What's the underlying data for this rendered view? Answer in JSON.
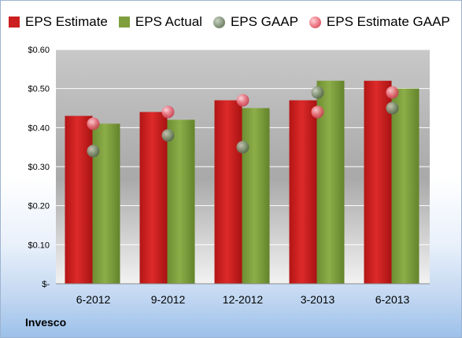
{
  "company": "Invesco",
  "colors": {
    "eps_estimate": "#cc1f1f",
    "eps_actual": "#7f9f3f",
    "eps_gaap": "#7f8f75",
    "eps_estimate_gaap": "#e86a78"
  },
  "chart_data": {
    "type": "bar",
    "categories": [
      "6-2012",
      "9-2012",
      "12-2012",
      "3-2013",
      "6-2013"
    ],
    "series": [
      {
        "name": "EPS Estimate",
        "kind": "bar",
        "values": [
          0.43,
          0.44,
          0.47,
          0.47,
          0.52
        ]
      },
      {
        "name": "EPS Actual",
        "kind": "bar",
        "values": [
          0.41,
          0.42,
          0.45,
          0.52,
          0.5
        ]
      },
      {
        "name": "EPS GAAP",
        "kind": "point",
        "values": [
          0.34,
          0.38,
          0.35,
          0.49,
          0.45
        ]
      },
      {
        "name": "EPS Estimate GAAP",
        "kind": "point",
        "values": [
          0.41,
          0.44,
          0.47,
          0.44,
          0.49
        ]
      }
    ],
    "ylim": [
      0,
      0.6
    ],
    "yticks": [
      0,
      0.1,
      0.2,
      0.3,
      0.4,
      0.5,
      0.6
    ],
    "ytick_labels": [
      "$-",
      "$0.10",
      "$0.20",
      "$0.30",
      "$0.40",
      "$0.50",
      "$0.60"
    ],
    "grid": true,
    "legend_position": "top"
  }
}
